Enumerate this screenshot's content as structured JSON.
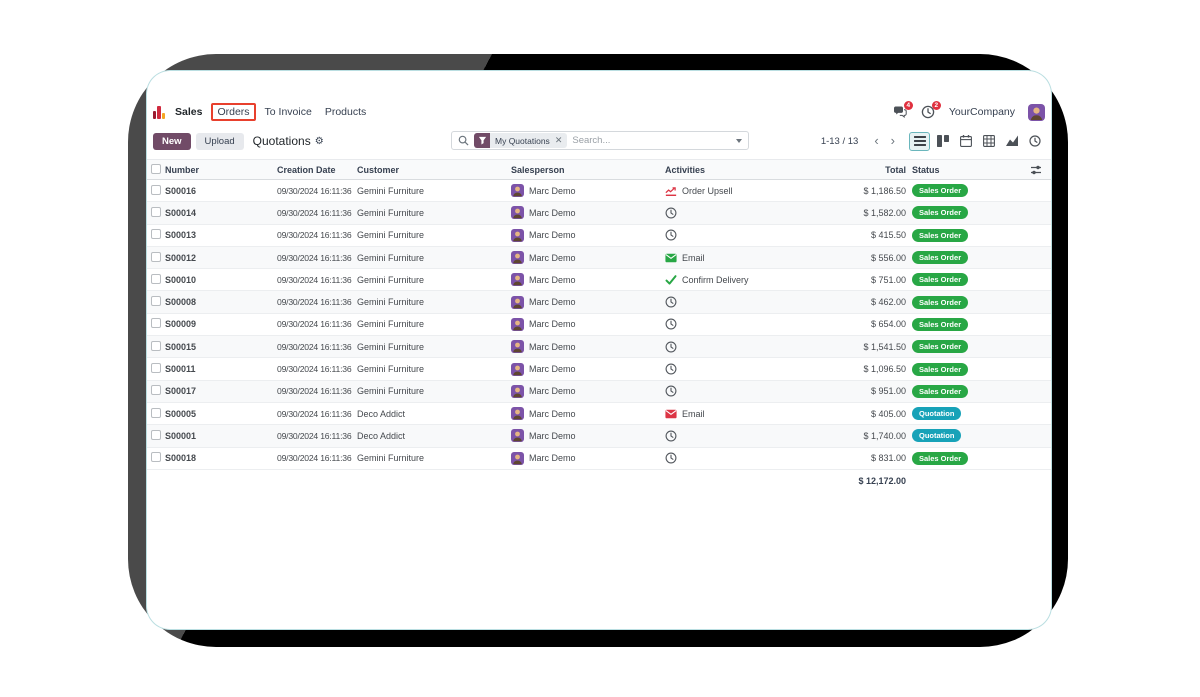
{
  "nav": {
    "app_menus": [
      {
        "label": "Sales",
        "is_app": true,
        "highlighted": false
      },
      {
        "label": "Orders",
        "is_app": false,
        "highlighted": true
      },
      {
        "label": "To Invoice",
        "is_app": false,
        "highlighted": false
      },
      {
        "label": "Products",
        "is_app": false,
        "highlighted": false
      }
    ],
    "messages_badge": "4",
    "activities_badge": "2",
    "company": "YourCompany"
  },
  "control_bar": {
    "new_label": "New",
    "upload_label": "Upload",
    "breadcrumb": "Quotations",
    "search": {
      "facet_label": "My Quotations",
      "placeholder": "Search..."
    },
    "pager": "1-13 / 13",
    "active_view": "list"
  },
  "table": {
    "headers": {
      "number": "Number",
      "creation_date": "Creation Date",
      "customer": "Customer",
      "salesperson": "Salesperson",
      "activities": "Activities",
      "total": "Total",
      "status": "Status"
    },
    "rows": [
      {
        "number": "S00016",
        "creation_date": "09/30/2024 16:11:36",
        "customer": "Gemini Furniture",
        "salesperson": "Marc Demo",
        "activity_icon": "upsell",
        "activity_label": "Order Upsell",
        "total": "$ 1,186.50",
        "status": "Sales Order",
        "status_type": "success"
      },
      {
        "number": "S00014",
        "creation_date": "09/30/2024 16:11:36",
        "customer": "Gemini Furniture",
        "salesperson": "Marc Demo",
        "activity_icon": "clock",
        "activity_label": "",
        "total": "$ 1,582.00",
        "status": "Sales Order",
        "status_type": "success"
      },
      {
        "number": "S00013",
        "creation_date": "09/30/2024 16:11:36",
        "customer": "Gemini Furniture",
        "salesperson": "Marc Demo",
        "activity_icon": "clock",
        "activity_label": "",
        "total": "$ 415.50",
        "status": "Sales Order",
        "status_type": "success"
      },
      {
        "number": "S00012",
        "creation_date": "09/30/2024 16:11:36",
        "customer": "Gemini Furniture",
        "salesperson": "Marc Demo",
        "activity_icon": "email-green",
        "activity_label": "Email",
        "total": "$ 556.00",
        "status": "Sales Order",
        "status_type": "success"
      },
      {
        "number": "S00010",
        "creation_date": "09/30/2024 16:11:36",
        "customer": "Gemini Furniture",
        "salesperson": "Marc Demo",
        "activity_icon": "check",
        "activity_label": "Confirm Delivery",
        "total": "$ 751.00",
        "status": "Sales Order",
        "status_type": "success"
      },
      {
        "number": "S00008",
        "creation_date": "09/30/2024 16:11:36",
        "customer": "Gemini Furniture",
        "salesperson": "Marc Demo",
        "activity_icon": "clock",
        "activity_label": "",
        "total": "$ 462.00",
        "status": "Sales Order",
        "status_type": "success"
      },
      {
        "number": "S00009",
        "creation_date": "09/30/2024 16:11:36",
        "customer": "Gemini Furniture",
        "salesperson": "Marc Demo",
        "activity_icon": "clock",
        "activity_label": "",
        "total": "$ 654.00",
        "status": "Sales Order",
        "status_type": "success"
      },
      {
        "number": "S00015",
        "creation_date": "09/30/2024 16:11:36",
        "customer": "Gemini Furniture",
        "salesperson": "Marc Demo",
        "activity_icon": "clock",
        "activity_label": "",
        "total": "$ 1,541.50",
        "status": "Sales Order",
        "status_type": "success"
      },
      {
        "number": "S00011",
        "creation_date": "09/30/2024 16:11:36",
        "customer": "Gemini Furniture",
        "salesperson": "Marc Demo",
        "activity_icon": "clock",
        "activity_label": "",
        "total": "$ 1,096.50",
        "status": "Sales Order",
        "status_type": "success"
      },
      {
        "number": "S00017",
        "creation_date": "09/30/2024 16:11:36",
        "customer": "Gemini Furniture",
        "salesperson": "Marc Demo",
        "activity_icon": "clock",
        "activity_label": "",
        "total": "$ 951.00",
        "status": "Sales Order",
        "status_type": "success"
      },
      {
        "number": "S00005",
        "creation_date": "09/30/2024 16:11:36",
        "customer": "Deco Addict",
        "salesperson": "Marc Demo",
        "activity_icon": "email-red",
        "activity_label": "Email",
        "total": "$ 405.00",
        "status": "Quotation",
        "status_type": "info"
      },
      {
        "number": "S00001",
        "creation_date": "09/30/2024 16:11:36",
        "customer": "Deco Addict",
        "salesperson": "Marc Demo",
        "activity_icon": "clock",
        "activity_label": "",
        "total": "$ 1,740.00",
        "status": "Quotation",
        "status_type": "info"
      },
      {
        "number": "S00018",
        "creation_date": "09/30/2024 16:11:36",
        "customer": "Gemini Furniture",
        "salesperson": "Marc Demo",
        "activity_icon": "clock",
        "activity_label": "",
        "total": "$ 831.00",
        "status": "Sales Order",
        "status_type": "success"
      }
    ],
    "footer_total": "$ 12,172.00"
  },
  "colors": {
    "primary": "#714B67",
    "success": "#28a745",
    "info": "#17a2b8",
    "danger": "#dc3545",
    "annotation_red": "#e8402d"
  }
}
